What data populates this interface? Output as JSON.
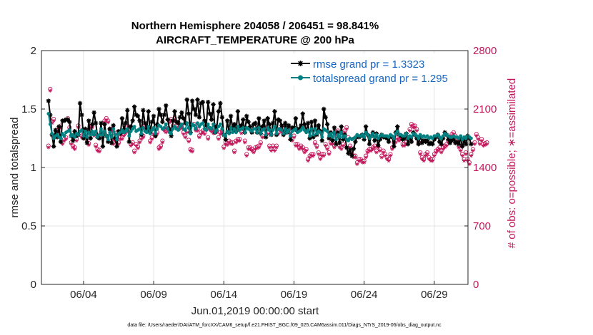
{
  "chart_data": {
    "type": "line",
    "title": "Northern Hemisphere 204058 / 206451 = 98.841%",
    "subtitle": "AIRCRAFT_TEMPERATURE @ 200 hPa",
    "xlabel": "Jun.01,2019 00:00:00 start",
    "ylabel": "rmse and totalspread",
    "ylabel_right": "# of obs: o=possible; ∗=assimilated",
    "footnote": "data file: /Users/raeder/DAI/ATM_forcXX/CAM6_setup/f.e21.FHIST_BGC.f09_025.CAM6assim.011/Diags_NTrS_2019-06/obs_diag_output.nc",
    "xlim": [
      0.5,
      30.9
    ],
    "ylim": [
      0,
      2
    ],
    "ylim_right": [
      0,
      2800
    ],
    "x_ticks": [
      3.5,
      8.5,
      13.5,
      18.5,
      23.5,
      28.5
    ],
    "x_tick_labels": [
      "06/04",
      "06/09",
      "06/14",
      "06/19",
      "06/24",
      "06/29"
    ],
    "y_ticks": [
      0,
      0.5,
      1,
      1.5,
      2
    ],
    "y_tick_labels": [
      "0",
      "0.5",
      "1",
      "1.5",
      "2"
    ],
    "y_ticks_right": [
      0,
      700,
      1400,
      2100,
      2800
    ],
    "y_tick_labels_right": [
      "0",
      "700",
      "1400",
      "2100",
      "2800"
    ],
    "grid": true,
    "legend_position": "top-right",
    "colors": {
      "rmse": "#000000",
      "spread": "#008080",
      "obs": "#c2185b",
      "legend_text": "#1565c0"
    },
    "series": [
      {
        "name": "rmse grand pr = 1.3323",
        "values": [
          1.57,
          1.45,
          1.28,
          1.18,
          1.32,
          1.26,
          1.35,
          1.22,
          1.4,
          1.4,
          1.41,
          1.41,
          1.39,
          1.27,
          1.23,
          1.31,
          1.27,
          1.28,
          1.55,
          1.45,
          1.25,
          1.33,
          1.21,
          1.4,
          1.25,
          1.37,
          1.47,
          1.38,
          1.26,
          1.25,
          1.38,
          1.18,
          1.37,
          1.27,
          1.22,
          1.33,
          1.21,
          1.36,
          1.25,
          1.18,
          1.31,
          1.29,
          1.42,
          1.32,
          1.38,
          1.49,
          1.22,
          1.35,
          1.4,
          1.52,
          1.45,
          1.44,
          1.4,
          1.28,
          1.49,
          1.38,
          1.32,
          1.48,
          1.3,
          1.39,
          1.44,
          1.27,
          1.37,
          1.5,
          1.45,
          1.39,
          1.45,
          1.53,
          1.41,
          1.33,
          1.27,
          1.4,
          1.48,
          1.39,
          1.38,
          1.43,
          1.47,
          1.42,
          1.38,
          1.58,
          1.46,
          1.3,
          1.57,
          1.5,
          1.45,
          1.58,
          1.43,
          1.55,
          1.56,
          1.4,
          1.36,
          1.56,
          1.46,
          1.41,
          1.54,
          1.3,
          1.35,
          1.48,
          1.55,
          1.43,
          1.28,
          1.24,
          1.4,
          1.3,
          1.44,
          1.33,
          1.37,
          1.31,
          1.48,
          1.33,
          1.36,
          1.41,
          1.3,
          1.44,
          1.39,
          1.35,
          1.3,
          1.37,
          1.38,
          1.3,
          1.42,
          1.29,
          1.35,
          1.4,
          1.26,
          1.42,
          1.37,
          1.28,
          1.38,
          1.48,
          1.28,
          1.41,
          1.4,
          1.36,
          1.28,
          1.38,
          1.3,
          1.36,
          1.24,
          1.34,
          1.34,
          1.42,
          1.31,
          1.33,
          1.36,
          1.46,
          1.37,
          1.31,
          1.38,
          1.25,
          1.39,
          1.26,
          1.4,
          1.28,
          1.36,
          1.31,
          1.23,
          1.5,
          1.43,
          1.37,
          1.25,
          1.3,
          1.23,
          1.34,
          1.2,
          1.3,
          1.21,
          1.35,
          1.24,
          1.28,
          1.17,
          1.12,
          1.15,
          1.1,
          1.16,
          1.22,
          1.27,
          1.26,
          1.27,
          1.28,
          1.24,
          1.35,
          1.28,
          1.2,
          1.27,
          1.3,
          1.23,
          1.29,
          1.19,
          1.24,
          1.28,
          1.26,
          1.26,
          1.25,
          1.22,
          1.27,
          1.26,
          1.18,
          1.3,
          1.35,
          1.28,
          1.27,
          1.24,
          1.25,
          1.29,
          1.2,
          1.26,
          1.22,
          1.3,
          1.28,
          1.25,
          1.2,
          1.27,
          1.21,
          1.23,
          1.22,
          1.23,
          1.2,
          1.21,
          1.2,
          1.24,
          1.26,
          1.28,
          1.22,
          1.2,
          1.25,
          1.3,
          1.28,
          1.24,
          1.21,
          1.23,
          1.25,
          1.21,
          1.22,
          1.2,
          1.25,
          1.18,
          1.23,
          1.2,
          1.27,
          1.25,
          1.2
        ]
      },
      {
        "name": "totalspread grand pr = 1.295",
        "values": [
          1.46,
          1.37,
          1.29,
          1.25,
          1.27,
          1.28,
          1.26,
          1.25,
          1.29,
          1.27,
          1.3,
          1.31,
          1.32,
          1.27,
          1.28,
          1.26,
          1.29,
          1.28,
          1.31,
          1.32,
          1.27,
          1.31,
          1.26,
          1.3,
          1.28,
          1.31,
          1.28,
          1.31,
          1.26,
          1.28,
          1.33,
          1.28,
          1.31,
          1.27,
          1.24,
          1.3,
          1.26,
          1.33,
          1.28,
          1.24,
          1.29,
          1.3,
          1.32,
          1.3,
          1.31,
          1.33,
          1.27,
          1.31,
          1.33,
          1.35,
          1.31,
          1.32,
          1.33,
          1.29,
          1.34,
          1.31,
          1.3,
          1.35,
          1.29,
          1.32,
          1.34,
          1.29,
          1.33,
          1.36,
          1.35,
          1.33,
          1.34,
          1.37,
          1.33,
          1.3,
          1.29,
          1.33,
          1.35,
          1.33,
          1.32,
          1.35,
          1.37,
          1.33,
          1.32,
          1.38,
          1.34,
          1.29,
          1.37,
          1.36,
          1.33,
          1.38,
          1.35,
          1.37,
          1.38,
          1.33,
          1.32,
          1.37,
          1.34,
          1.33,
          1.37,
          1.3,
          1.32,
          1.35,
          1.37,
          1.33,
          1.28,
          1.27,
          1.31,
          1.29,
          1.34,
          1.3,
          1.33,
          1.3,
          1.35,
          1.32,
          1.33,
          1.34,
          1.3,
          1.34,
          1.33,
          1.32,
          1.31,
          1.33,
          1.33,
          1.3,
          1.34,
          1.29,
          1.32,
          1.33,
          1.28,
          1.34,
          1.32,
          1.28,
          1.32,
          1.35,
          1.29,
          1.33,
          1.33,
          1.32,
          1.29,
          1.33,
          1.3,
          1.32,
          1.27,
          1.31,
          1.32,
          1.33,
          1.3,
          1.31,
          1.32,
          1.34,
          1.32,
          1.3,
          1.32,
          1.27,
          1.33,
          1.28,
          1.33,
          1.29,
          1.31,
          1.3,
          1.26,
          1.33,
          1.32,
          1.31,
          1.27,
          1.29,
          1.26,
          1.3,
          1.24,
          1.28,
          1.26,
          1.3,
          1.26,
          1.27,
          1.24,
          1.23,
          1.25,
          1.24,
          1.25,
          1.26,
          1.28,
          1.27,
          1.27,
          1.28,
          1.26,
          1.3,
          1.28,
          1.25,
          1.27,
          1.29,
          1.26,
          1.28,
          1.25,
          1.27,
          1.28,
          1.27,
          1.27,
          1.27,
          1.26,
          1.28,
          1.27,
          1.25,
          1.29,
          1.31,
          1.28,
          1.28,
          1.27,
          1.27,
          1.29,
          1.25,
          1.27,
          1.26,
          1.29,
          1.28,
          1.27,
          1.25,
          1.28,
          1.26,
          1.27,
          1.26,
          1.27,
          1.25,
          1.26,
          1.25,
          1.27,
          1.27,
          1.28,
          1.26,
          1.25,
          1.27,
          1.29,
          1.28,
          1.27,
          1.26,
          1.26,
          1.27,
          1.26,
          1.26,
          1.25,
          1.27,
          1.24,
          1.26,
          1.25,
          1.27,
          1.26,
          1.25
        ]
      }
    ],
    "obs_possible": [
      1660,
      2340,
      1950,
      1980,
      1800,
      1840,
      1880,
      1900,
      1700,
      1740,
      1760,
      1990,
      1880,
      1700,
      1660,
      1640,
      1740,
      1900,
      1850,
      1780,
      1780,
      1840,
      1720,
      1690,
      1900,
      1900,
      1800,
      1670,
      1620,
      1610,
      1820,
      1820,
      1960,
      1990,
      1960,
      1860,
      1860,
      1700,
      1740,
      1820,
      1700,
      1760,
      1760,
      1800,
      1830,
      1880,
      1890,
      1680,
      1700,
      1600,
      1680,
      1650,
      1720,
      1760,
      1780,
      1900,
      1880,
      1860,
      1720,
      1760,
      1820,
      1790,
      1820,
      1640,
      1660,
      1720,
      1860,
      1840,
      1870,
      1960,
      1980,
      1900,
      1990,
      1900,
      1940,
      1880,
      1900,
      1820,
      1780,
      1840,
      1730,
      1620,
      1610,
      1920,
      1860,
      1860,
      1780,
      1820,
      1840,
      1820,
      1870,
      1760,
      1870,
      1850,
      1830,
      1900,
      1840,
      1760,
      1820,
      1840,
      1650,
      1700,
      1690,
      1720,
      1700,
      1700,
      1600,
      1720,
      1740,
      1740,
      1830,
      1870,
      1720,
      1560,
      1640,
      1640,
      1620,
      1600,
      1640,
      1650,
      1660,
      1700,
      1780,
      1880,
      1880,
      1820,
      1660,
      1620,
      1660,
      1620,
      1660,
      1820,
      1860,
      1840,
      1840,
      1900,
      1870,
      1860,
      1820,
      1740,
      1780,
      1680,
      1680,
      1640,
      1660,
      1640,
      1600,
      1620,
      1500,
      1540,
      1560,
      1560,
      1700,
      1660,
      1580,
      1520,
      1560,
      1560,
      1680,
      1640,
      1580,
      1700,
      1700,
      1660,
      1820,
      1840,
      1660,
      1640,
      1680,
      1840,
      1880,
      1760,
      1660,
      1560,
      1540,
      1540,
      1460,
      1500,
      1500,
      1480,
      1480,
      1540,
      1600,
      1620,
      1620,
      1640,
      1660,
      1600,
      1660,
      1620,
      1540,
      1600,
      1560,
      1520,
      1500,
      1560,
      1640,
      1700,
      1720,
      1760,
      1740,
      1760,
      1680,
      1680,
      1700,
      1760,
      1860,
      1920,
      1900,
      1900,
      1860,
      1700,
      1580,
      1520,
      1500,
      1560,
      1580,
      1520,
      1500,
      1500,
      1560,
      1600,
      1620,
      1640,
      1600,
      1640,
      1660,
      1680,
      1720,
      1760,
      1800,
      1820,
      1780,
      1720,
      1660,
      1620,
      1560,
      1500,
      1580,
      1500,
      1460,
      1560,
      1620,
      1700,
      1800,
      1760,
      1700,
      1740,
      1680,
      1690,
      1700
    ],
    "obs_assimilated": [
      1640,
      2320,
      1930,
      1960,
      1780,
      1820,
      1860,
      1880,
      1680,
      1720,
      1740,
      1970,
      1860,
      1680,
      1640,
      1620,
      1720,
      1880,
      1830,
      1760,
      1760,
      1820,
      1700,
      1670,
      1880,
      1880,
      1780,
      1650,
      1600,
      1590,
      1800,
      1800,
      1940,
      1970,
      1940,
      1840,
      1840,
      1680,
      1720,
      1800,
      1680,
      1740,
      1740,
      1780,
      1810,
      1860,
      1870,
      1660,
      1680,
      1580,
      1660,
      1630,
      1700,
      1740,
      1760,
      1880,
      1860,
      1840,
      1700,
      1740,
      1800,
      1770,
      1800,
      1620,
      1640,
      1700,
      1840,
      1820,
      1850,
      1940,
      1960,
      1880,
      1970,
      1880,
      1920,
      1860,
      1880,
      1800,
      1760,
      1820,
      1710,
      1600,
      1590,
      1900,
      1840,
      1840,
      1760,
      1800,
      1820,
      1800,
      1850,
      1740,
      1850,
      1830,
      1810,
      1880,
      1820,
      1740,
      1800,
      1820,
      1630,
      1680,
      1670,
      1700,
      1680,
      1680,
      1580,
      1700,
      1720,
      1720,
      1810,
      1850,
      1700,
      1540,
      1620,
      1620,
      1600,
      1580,
      1620,
      1630,
      1640,
      1680,
      1760,
      1860,
      1860,
      1800,
      1640,
      1600,
      1640,
      1600,
      1640,
      1800,
      1840,
      1820,
      1820,
      1880,
      1850,
      1840,
      1800,
      1720,
      1760,
      1660,
      1660,
      1620,
      1640,
      1620,
      1580,
      1600,
      1480,
      1520,
      1540,
      1540,
      1680,
      1640,
      1560,
      1500,
      1540,
      1540,
      1660,
      1620,
      1560,
      1680,
      1680,
      1640,
      1800,
      1820,
      1640,
      1620,
      1660,
      1820,
      1860,
      1740,
      1640,
      1540,
      1520,
      1520,
      1440,
      1480,
      1480,
      1460,
      1460,
      1520,
      1580,
      1600,
      1600,
      1620,
      1640,
      1580,
      1640,
      1600,
      1520,
      1580,
      1540,
      1500,
      1480,
      1540,
      1620,
      1680,
      1700,
      1740,
      1720,
      1740,
      1660,
      1660,
      1680,
      1740,
      1840,
      1900,
      1880,
      1880,
      1840,
      1680,
      1560,
      1500,
      1480,
      1540,
      1560,
      1500,
      1480,
      1480,
      1540,
      1580,
      1600,
      1620,
      1580,
      1620,
      1640,
      1660,
      1700,
      1740,
      1780,
      1800,
      1760,
      1700,
      1640,
      1600,
      1540,
      1480,
      1560,
      1480,
      1440,
      1540,
      1600,
      1680,
      1780,
      1740,
      1680,
      1720,
      1660,
      1670,
      1680
    ]
  }
}
